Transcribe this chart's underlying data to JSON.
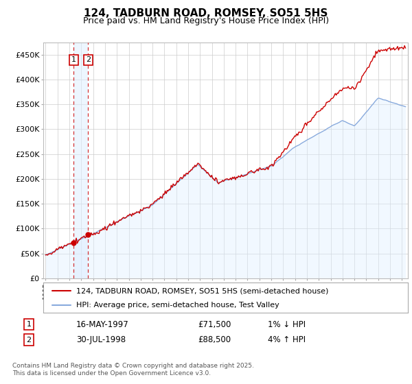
{
  "title": "124, TADBURN ROAD, ROMSEY, SO51 5HS",
  "subtitle": "Price paid vs. HM Land Registry's House Price Index (HPI)",
  "ylabel_ticks": [
    "£0",
    "£50K",
    "£100K",
    "£150K",
    "£200K",
    "£250K",
    "£300K",
    "£350K",
    "£400K",
    "£450K"
  ],
  "ytick_values": [
    0,
    50000,
    100000,
    150000,
    200000,
    250000,
    300000,
    350000,
    400000,
    450000
  ],
  "ylim": [
    0,
    475000
  ],
  "xlim_start": 1994.8,
  "xlim_end": 2025.5,
  "sale1_date": 1997.37,
  "sale1_price": 71500,
  "sale1_label": "1",
  "sale1_date_str": "16-MAY-1997",
  "sale1_price_str": "£71,500",
  "sale1_hpi_str": "1% ↓ HPI",
  "sale2_date": 1998.58,
  "sale2_price": 88500,
  "sale2_label": "2",
  "sale2_date_str": "30-JUL-1998",
  "sale2_price_str": "£88,500",
  "sale2_hpi_str": "4% ↑ HPI",
  "line1_color": "#cc0000",
  "line2_color": "#88aadd",
  "line2_fill_color": "#ddeeff",
  "grid_color": "#cccccc",
  "chart_bg": "#ffffff",
  "legend_label1": "124, TADBURN ROAD, ROMSEY, SO51 5HS (semi-detached house)",
  "legend_label2": "HPI: Average price, semi-detached house, Test Valley",
  "footer": "Contains HM Land Registry data © Crown copyright and database right 2025.\nThis data is licensed under the Open Government Licence v3.0.",
  "title_fontsize": 11,
  "subtitle_fontsize": 9,
  "tick_fontsize": 8,
  "annotation_box_color": "#cc0000"
}
